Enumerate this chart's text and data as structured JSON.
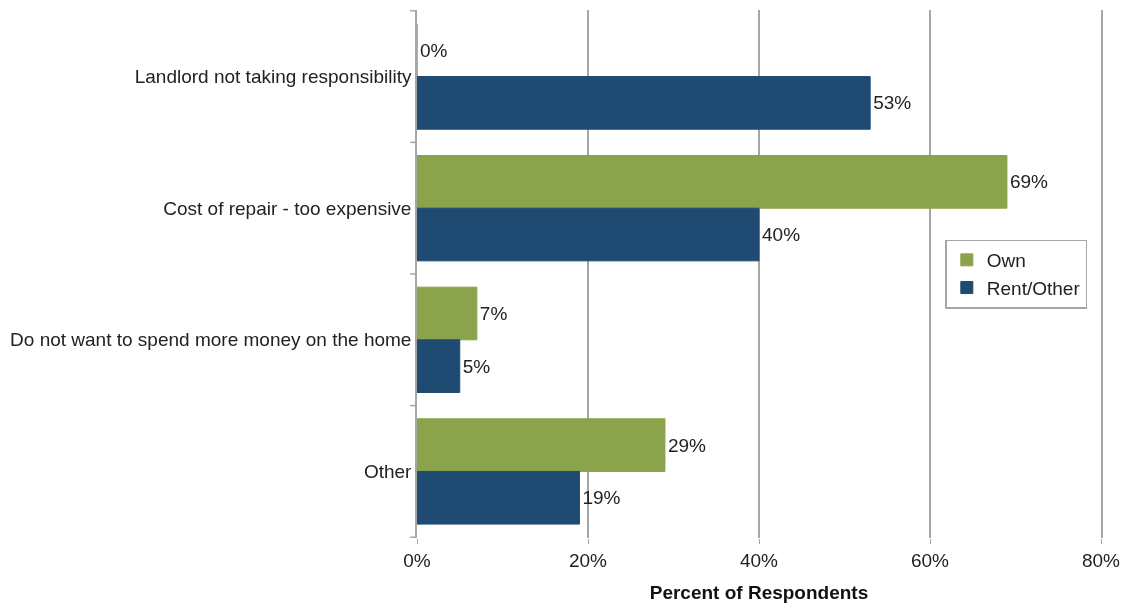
{
  "chart_data": {
    "type": "bar",
    "orientation": "horizontal",
    "xlabel": "Percent of Respondents",
    "categories": [
      "Landlord not taking responsibility",
      "Cost of repair - too expensive",
      "Do not want to spend more money on the home",
      "Other"
    ],
    "series": [
      {
        "name": "Own",
        "color": "#8ba34b",
        "values": [
          0,
          69,
          7,
          29
        ],
        "value_labels": [
          "0%",
          "69%",
          "7%",
          "29%"
        ]
      },
      {
        "name": "Rent/Other",
        "color": "#1f4a72",
        "values": [
          53,
          40,
          5,
          19
        ],
        "value_labels": [
          "53%",
          "40%",
          "5%",
          "19%"
        ]
      }
    ],
    "xlim": [
      0,
      80
    ],
    "xticks": [
      {
        "value": 0,
        "label": "0%"
      },
      {
        "value": 20,
        "label": "20%"
      },
      {
        "value": 40,
        "label": "40%"
      },
      {
        "value": 60,
        "label": "60%"
      },
      {
        "value": 80,
        "label": "80%"
      }
    ],
    "grid": "x",
    "legend": "right"
  }
}
